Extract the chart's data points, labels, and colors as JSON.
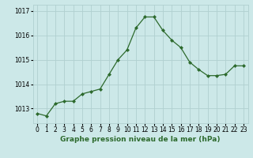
{
  "x": [
    0,
    1,
    2,
    3,
    4,
    5,
    6,
    7,
    8,
    9,
    10,
    11,
    12,
    13,
    14,
    15,
    16,
    17,
    18,
    19,
    20,
    21,
    22,
    23
  ],
  "y": [
    1012.8,
    1012.7,
    1013.2,
    1013.3,
    1013.3,
    1013.6,
    1013.7,
    1013.8,
    1014.4,
    1015.0,
    1015.4,
    1016.3,
    1016.75,
    1016.75,
    1016.2,
    1015.8,
    1015.5,
    1014.9,
    1014.6,
    1014.35,
    1014.35,
    1014.4,
    1014.75,
    1014.75
  ],
  "line_color": "#2d6a2d",
  "marker_color": "#2d6a2d",
  "bg_color": "#cce8e8",
  "grid_color": "#b0d0d0",
  "title": "Graphe pression niveau de la mer (hPa)",
  "ylim_min": 1012.4,
  "ylim_max": 1017.25,
  "yticks": [
    1013,
    1014,
    1015,
    1016,
    1017
  ],
  "xtick_labels": [
    "0",
    "1",
    "2",
    "3",
    "4",
    "5",
    "6",
    "7",
    "8",
    "9",
    "10",
    "11",
    "12",
    "13",
    "14",
    "15",
    "16",
    "17",
    "18",
    "19",
    "20",
    "21",
    "22",
    "23"
  ],
  "tick_fontsize": 5.5,
  "title_fontsize": 6.5,
  "title_fontweight": "bold"
}
